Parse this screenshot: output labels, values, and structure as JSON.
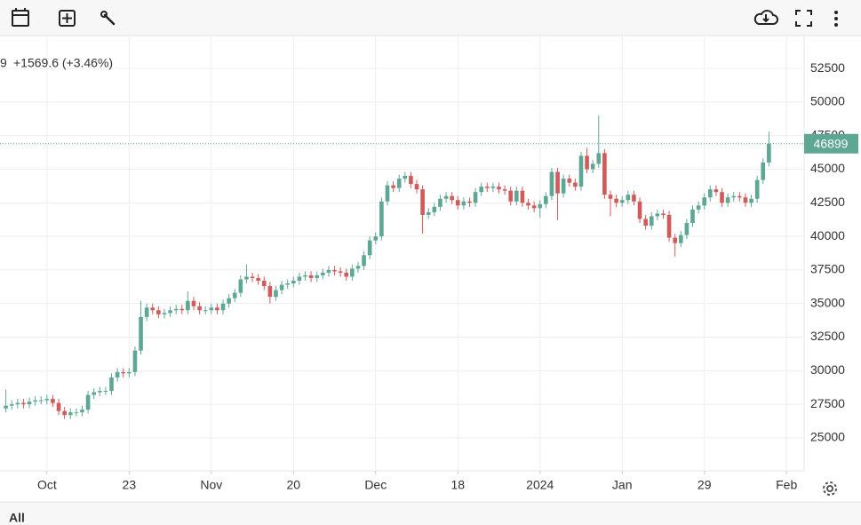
{
  "chart_data": {
    "type": "candlestick",
    "legend_prefix": "9",
    "change": "+1569.6 (+3.46%)",
    "tab": "All",
    "up_color": "#5fa795",
    "down_color": "#d05b5a",
    "change_color": "#66cc33",
    "grid": true,
    "ylim": [
      22550,
      54950
    ],
    "yticks": [
      25000,
      27500,
      30000,
      32500,
      35000,
      37500,
      40000,
      42500,
      45000,
      47500,
      50000,
      52500
    ],
    "xlim": [
      -1,
      136
    ],
    "xticks": [
      {
        "value": 7,
        "label": "Oct"
      },
      {
        "value": 21,
        "label": "23"
      },
      {
        "value": 35,
        "label": "Nov"
      },
      {
        "value": 49,
        "label": "20"
      },
      {
        "value": 63,
        "label": "Dec"
      },
      {
        "value": 77,
        "label": "18"
      },
      {
        "value": 91,
        "label": "2024"
      },
      {
        "value": 105,
        "label": "Jan"
      },
      {
        "value": 119,
        "label": "29"
      },
      {
        "value": 133,
        "label": "Feb"
      }
    ],
    "open": [
      27200,
      27400,
      27500,
      27600,
      27500,
      27700,
      27800,
      27800,
      27900,
      27600,
      27000,
      26700,
      26900,
      26900,
      27100,
      28200,
      28400,
      28500,
      28500,
      29500,
      29900,
      29800,
      29900,
      31500,
      34000,
      34700,
      34500,
      34200,
      34300,
      34500,
      34600,
      34500,
      35200,
      34800,
      34500,
      34500,
      34700,
      34500,
      35000,
      35400,
      35800,
      36800,
      37000,
      36900,
      36700,
      36300,
      35500,
      36000,
      36400,
      36500,
      36700,
      37000,
      37100,
      36900,
      37100,
      37300,
      37500,
      37400,
      37300,
      37000,
      37600,
      37800,
      38600,
      39700,
      40000,
      42600,
      43800,
      43600,
      44300,
      44500,
      43900,
      43500,
      41600,
      41800,
      42200,
      42800,
      43000,
      42700,
      42300,
      42600,
      42500,
      43300,
      43700,
      43600,
      43700,
      43500,
      43400,
      42600,
      43400,
      42500,
      42300,
      42100,
      42400,
      43000,
      44800,
      43200,
      44300,
      44000,
      43700,
      46000,
      45000,
      45400,
      46200,
      43100,
      42800,
      42500,
      42700,
      43100,
      42600,
      41300,
      40800,
      41500,
      41700,
      41600,
      39900,
      39500,
      40100,
      41000,
      42000,
      42300,
      42900,
      43500,
      43300,
      42500,
      42900,
      43000,
      42900,
      42500,
      42800,
      44200,
      45500
    ],
    "high": [
      28600,
      27800,
      27900,
      27900,
      28000,
      28100,
      28100,
      28200,
      28200,
      27900,
      27300,
      27200,
      27200,
      27400,
      28500,
      28700,
      28800,
      28800,
      29800,
      30200,
      30200,
      30200,
      31800,
      35200,
      35000,
      35000,
      34800,
      34600,
      34800,
      34900,
      34900,
      35900,
      35500,
      35100,
      34800,
      35000,
      35000,
      35300,
      35700,
      36100,
      37100,
      37900,
      37300,
      37200,
      37000,
      36600,
      36300,
      36700,
      36800,
      37000,
      37300,
      37400,
      37400,
      37400,
      37600,
      37800,
      37800,
      37700,
      37600,
      37900,
      38100,
      38900,
      40000,
      40300,
      42900,
      44100,
      44100,
      44600,
      44800,
      44800,
      44200,
      43800,
      42100,
      42500,
      43100,
      43300,
      43300,
      43000,
      42900,
      42900,
      43600,
      44000,
      44000,
      44000,
      44000,
      43800,
      43700,
      43700,
      43700,
      42800,
      42600,
      42700,
      43300,
      45100,
      45100,
      44600,
      44600,
      44300,
      46300,
      46600,
      45700,
      49000,
      46500,
      43400,
      43100,
      43000,
      43400,
      43400,
      42900,
      41600,
      41800,
      42000,
      42000,
      41900,
      40200,
      40400,
      41300,
      42300,
      42600,
      43200,
      43800,
      43800,
      43600,
      43200,
      43300,
      43300,
      43200,
      43100,
      44500,
      45800,
      47800
    ],
    "low": [
      26900,
      27100,
      27200,
      27200,
      27200,
      27400,
      27500,
      27500,
      27300,
      26700,
      26400,
      26400,
      26600,
      26600,
      26800,
      27900,
      28100,
      28200,
      28200,
      29200,
      29500,
      29500,
      29600,
      31200,
      33700,
      34200,
      33900,
      33900,
      34000,
      34200,
      34200,
      34200,
      34500,
      34200,
      34200,
      34200,
      34200,
      34200,
      34700,
      35100,
      35500,
      36500,
      36600,
      36400,
      36000,
      35000,
      35200,
      35700,
      36100,
      36200,
      36400,
      36700,
      36600,
      36600,
      36800,
      37000,
      37100,
      37000,
      36700,
      36700,
      37300,
      37500,
      38300,
      39400,
      39700,
      42300,
      43300,
      43300,
      44000,
      43600,
      43200,
      40200,
      41300,
      41500,
      41900,
      42500,
      42400,
      42000,
      42000,
      42200,
      42200,
      43000,
      43300,
      43300,
      43200,
      43100,
      42300,
      42300,
      42200,
      42000,
      41800,
      41400,
      42100,
      42700,
      41200,
      42900,
      43700,
      43400,
      43400,
      44700,
      44700,
      45100,
      42800,
      41500,
      42200,
      42200,
      42400,
      42300,
      41000,
      40500,
      40500,
      41200,
      41300,
      39600,
      38500,
      39200,
      39800,
      40700,
      41700,
      42000,
      42600,
      43000,
      42200,
      42200,
      42600,
      42600,
      42200,
      42200,
      42500,
      43900,
      45200
    ],
    "close": [
      27400,
      27500,
      27600,
      27500,
      27700,
      27800,
      27800,
      27900,
      27600,
      27000,
      26700,
      26900,
      26900,
      27100,
      28200,
      28400,
      28500,
      28500,
      29500,
      29900,
      29800,
      29900,
      31500,
      34000,
      34700,
      34500,
      34200,
      34300,
      34500,
      34600,
      34500,
      35200,
      34800,
      34500,
      34500,
      34700,
      34500,
      35000,
      35400,
      35800,
      36800,
      37000,
      36900,
      36700,
      36300,
      35500,
      36000,
      36400,
      36500,
      36700,
      37000,
      37100,
      36900,
      37100,
      37300,
      37500,
      37400,
      37300,
      37000,
      37600,
      37800,
      38600,
      39700,
      40000,
      42600,
      43800,
      43600,
      44300,
      44500,
      43900,
      43500,
      41600,
      41800,
      42200,
      42800,
      43000,
      42700,
      42300,
      42600,
      42500,
      43300,
      43700,
      43600,
      43700,
      43500,
      43400,
      42600,
      43400,
      42500,
      42300,
      42100,
      42400,
      43000,
      44800,
      43200,
      44300,
      44000,
      43700,
      46000,
      45000,
      45400,
      46200,
      43100,
      42800,
      42500,
      42700,
      43100,
      42600,
      41300,
      40800,
      41500,
      41700,
      41600,
      39900,
      39500,
      40100,
      41000,
      42000,
      42300,
      42900,
      43500,
      43300,
      42500,
      42900,
      43000,
      42900,
      42500,
      42800,
      44200,
      45500,
      46899
    ]
  }
}
